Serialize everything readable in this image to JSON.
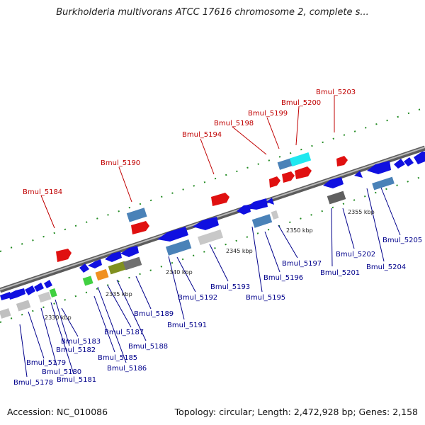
{
  "title": "Burkholderia multivorans ATCC 17616 chromosome 2, complete s...",
  "footer": {
    "accession": "Accession: NC_010086",
    "summary": "Topology: circular; Length: 2,472,928 bp; Genes: 2,158"
  },
  "colors": {
    "forward_gene": "#e01010",
    "reverse_gene": "#1010e0",
    "backbone": "#909090",
    "tick": "#228b22",
    "label_forward": "#c00000",
    "label_reverse": "#00008b"
  },
  "scale_labels": [
    "2330 kbp",
    "2335 kbp",
    "2340 kbp",
    "2345 kbp",
    "2350 kbp",
    "2355 kbp"
  ],
  "forward_labels": [
    "Bmul_5184",
    "Bmul_5190",
    "Bmul_5194",
    "Bmul_5198",
    "Bmul_5199",
    "Bmul_5200",
    "Bmul_5203"
  ],
  "reverse_labels": [
    "Bmul_5178",
    "Bmul_5179",
    "Bmul_5180",
    "Bmul_5181",
    "Bmul_5182",
    "Bmul_5183",
    "Bmul_5185",
    "Bmul_5186",
    "Bmul_5187",
    "Bmul_5188",
    "Bmul_5189",
    "Bmul_5191",
    "Bmul_5192",
    "Bmul_5193",
    "Bmul_5195",
    "Bmul_5196",
    "Bmul_5197",
    "Bmul_5201",
    "Bmul_5202",
    "Bmul_5204",
    "Bmul_5205"
  ]
}
